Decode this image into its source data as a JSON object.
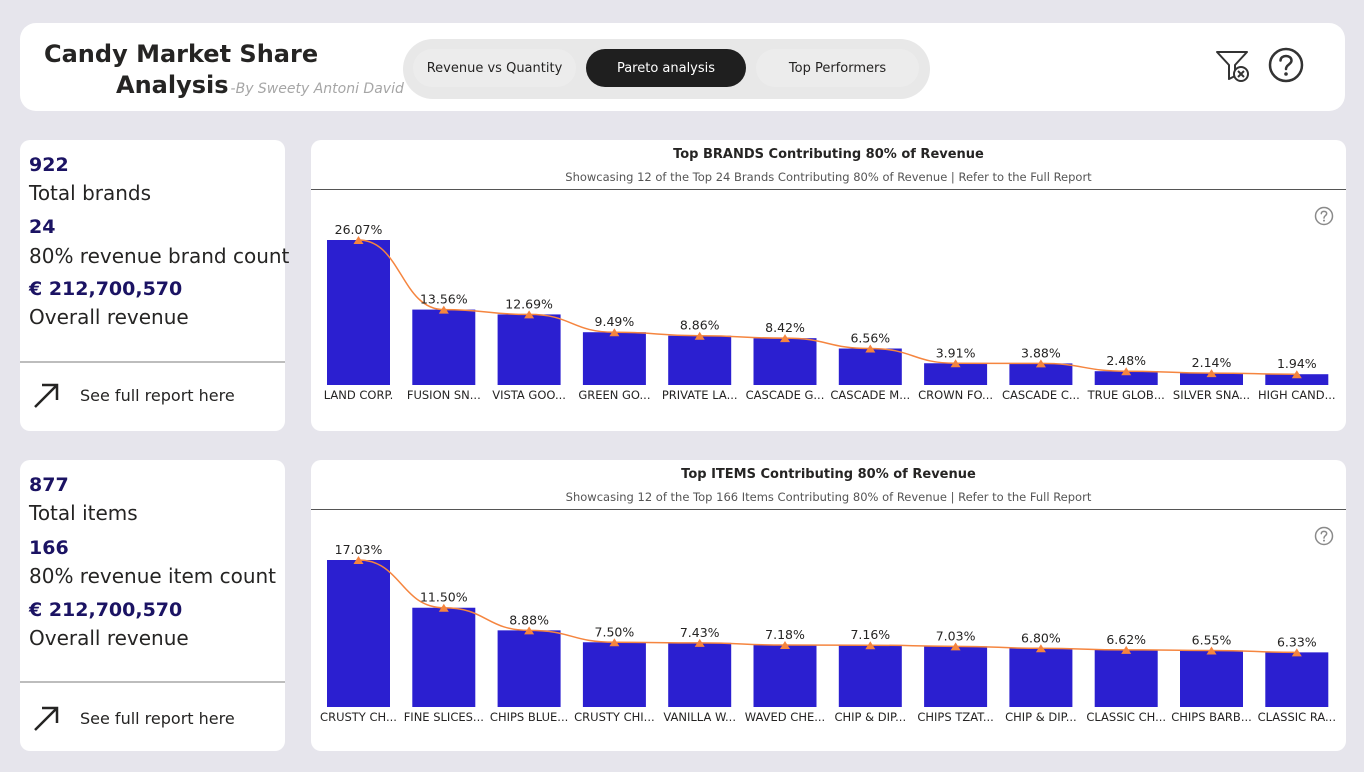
{
  "header": {
    "title_line1": "Candy Market Share",
    "title_line2": "Analysis",
    "byline": "-By Sweety Antoni David",
    "nav": [
      {
        "label": "Revenue vs Quantity",
        "active": false
      },
      {
        "label": "Pareto analysis",
        "active": true
      },
      {
        "label": "Top Performers",
        "active": false
      }
    ],
    "icons": [
      "clear-filter-icon",
      "help-icon"
    ]
  },
  "brands_card": {
    "total_value": "922",
    "total_label": "Total brands",
    "count_value": "24",
    "count_label": "80% revenue brand count",
    "revenue_value": "€ 212,700,570",
    "revenue_label": "Overall revenue",
    "link_label": "See full report here"
  },
  "items_card": {
    "total_value": "877",
    "total_label": "Total items",
    "count_value": "166",
    "count_label": "80% revenue item count",
    "revenue_value": "€ 212,700,570",
    "revenue_label": "Overall revenue",
    "link_label": "See full report here"
  },
  "colors": {
    "bar": "#2b1fd0",
    "line": "#f5853f",
    "kpi_value": "#1b1363"
  },
  "chart_data": [
    {
      "type": "bar",
      "title": "Top BRANDS Contributing 80% of Revenue",
      "subtitle": "Showcasing 12 of the Top 24 Brands Contributing 80% of Revenue | Refer to the Full Report",
      "categories": [
        "LAND CORP.",
        "FUSION SN...",
        "VISTA GOO...",
        "GREEN GO...",
        "PRIVATE LA...",
        "CASCADE G...",
        "CASCADE M...",
        "CROWN FO...",
        "CASCADE C...",
        "TRUE GLOB...",
        "SILVER SNA...",
        "HIGH CAND..."
      ],
      "values": [
        26.07,
        13.56,
        12.69,
        9.49,
        8.86,
        8.42,
        6.56,
        3.91,
        3.88,
        2.48,
        2.14,
        1.94
      ],
      "labels": [
        "26.07%",
        "13.56%",
        "12.69%",
        "9.49%",
        "8.86%",
        "8.42%",
        "6.56%",
        "3.91%",
        "3.88%",
        "2.48%",
        "2.14%",
        "1.94%"
      ],
      "overlay_line": true,
      "ylim": [
        0,
        26.07
      ]
    },
    {
      "type": "bar",
      "title": "Top ITEMS Contributing 80% of Revenue",
      "subtitle": "Showcasing 12 of the Top 166 Items Contributing 80% of Revenue | Refer to the Full Report",
      "categories": [
        "CRUSTY CH...",
        "FINE SLICES...",
        "CHIPS BLUE...",
        "CRUSTY CHI...",
        "VANILLA W...",
        "WAVED CHE...",
        "CHIP & DIP...",
        "CHIPS TZAT...",
        "CHIP & DIP...",
        "CLASSIC CH...",
        "CHIPS BARB...",
        "CLASSIC RA..."
      ],
      "values": [
        17.03,
        11.5,
        8.88,
        7.5,
        7.43,
        7.18,
        7.16,
        7.03,
        6.8,
        6.62,
        6.55,
        6.33
      ],
      "labels": [
        "17.03%",
        "11.50%",
        "8.88%",
        "7.50%",
        "7.43%",
        "7.18%",
        "7.16%",
        "7.03%",
        "6.80%",
        "6.62%",
        "6.55%",
        "6.33%"
      ],
      "overlay_line": true,
      "ylim": [
        0,
        17.03
      ]
    }
  ]
}
